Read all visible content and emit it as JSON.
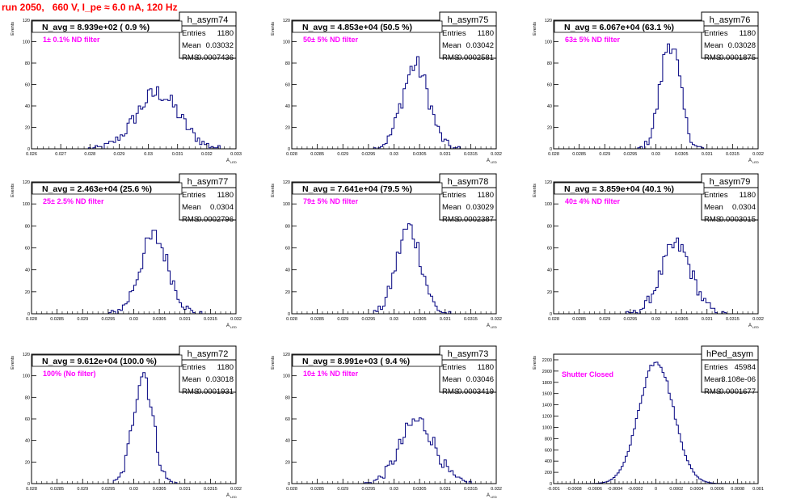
{
  "title": "run 2050,   660 V, I_pe ≈ 6.0 nA, 120 Hz",
  "colors": {
    "title": "#ff0000",
    "note": "#ff00ff",
    "hist": "#00007f",
    "frame": "#000000",
    "ticklabel": "#000000"
  },
  "chart_data": [
    {
      "type": "histogram",
      "name": "h_asym74",
      "avg_label": "N_avg = 8.939e+02 ( 0.9 %)",
      "note": "1± 0.1% ND filter",
      "entries": "1180",
      "mean": "0.03032",
      "rms": "0.0007436",
      "xlabel": "A",
      "xlabel_sub": "LED",
      "ylabel": "Events",
      "xlim": [
        0.026,
        0.033
      ],
      "ylim": [
        0,
        120
      ],
      "xticks": [
        "0.026",
        "0.027",
        "0.028",
        "0.029",
        "0.03",
        "0.031",
        "0.032",
        "0.033"
      ],
      "yticks": [
        "0",
        "20",
        "40",
        "60",
        "80",
        "100",
        "120"
      ],
      "mu": 0.03032,
      "sigma": 0.00074,
      "peak": 52
    },
    {
      "type": "histogram",
      "name": "h_asym75",
      "avg_label": "N_avg = 4.853e+04 (50.5 %)",
      "note": "50± 5% ND filter",
      "entries": "1180",
      "mean": "0.03042",
      "rms": "0.0002581",
      "xlabel": "A",
      "xlabel_sub": "LED",
      "ylabel": "Events",
      "xlim": [
        0.028,
        0.032
      ],
      "ylim": [
        0,
        120
      ],
      "xticks": [
        "0.028",
        "0.0285",
        "0.029",
        "0.0295",
        "0.03",
        "0.0305",
        "0.031",
        "0.0315",
        "0.032"
      ],
      "yticks": [
        "0",
        "20",
        "40",
        "60",
        "80",
        "100",
        "120"
      ],
      "mu": 0.03042,
      "sigma": 0.00026,
      "peak": 78
    },
    {
      "type": "histogram",
      "name": "h_asym76",
      "avg_label": "N_avg = 6.067e+04 (63.1 %)",
      "note": "63± 5% ND filter",
      "entries": "1180",
      "mean": "0.03028",
      "rms": "0.0001875",
      "xlabel": "A",
      "xlabel_sub": "LED",
      "ylabel": "Events",
      "xlim": [
        0.028,
        0.032
      ],
      "ylim": [
        0,
        120
      ],
      "xticks": [
        "0.028",
        "0.0285",
        "0.029",
        "0.0295",
        "0.03",
        "0.0305",
        "0.031",
        "0.0315",
        "0.032"
      ],
      "yticks": [
        "0",
        "20",
        "40",
        "60",
        "80",
        "100",
        "120"
      ],
      "mu": 0.03028,
      "sigma": 0.00019,
      "peak": 101
    },
    {
      "type": "histogram",
      "name": "h_asym77",
      "avg_label": "N_avg = 2.463e+04 (25.6 %)",
      "note": "25± 2.5% ND filter",
      "entries": "1180",
      "mean": "0.0304",
      "rms": "0.0002796",
      "xlabel": "A",
      "xlabel_sub": "LED",
      "ylabel": "Events",
      "xlim": [
        0.028,
        0.032
      ],
      "ylim": [
        0,
        120
      ],
      "xticks": [
        "0.028",
        "0.0285",
        "0.029",
        "0.0295",
        "0.03",
        "0.0305",
        "0.031",
        "0.0315",
        "0.032"
      ],
      "yticks": [
        "0",
        "20",
        "40",
        "60",
        "80",
        "100",
        "120"
      ],
      "mu": 0.0304,
      "sigma": 0.00028,
      "peak": 70
    },
    {
      "type": "histogram",
      "name": "h_asym78",
      "avg_label": "N_avg = 7.641e+04 (79.5 %)",
      "note": "79± 5% ND filter",
      "entries": "1180",
      "mean": "0.03029",
      "rms": "0.0002387",
      "xlabel": "A",
      "xlabel_sub": "LED",
      "ylabel": "Events",
      "xlim": [
        0.028,
        0.032
      ],
      "ylim": [
        0,
        120
      ],
      "xticks": [
        "0.028",
        "0.0285",
        "0.029",
        "0.0295",
        "0.03",
        "0.0305",
        "0.031",
        "0.0315",
        "0.032"
      ],
      "yticks": [
        "0",
        "20",
        "40",
        "60",
        "80",
        "100",
        "120"
      ],
      "mu": 0.03029,
      "sigma": 0.00024,
      "peak": 78
    },
    {
      "type": "histogram",
      "name": "h_asym79",
      "avg_label": "N_avg = 3.859e+04 (40.1 %)",
      "note": "40± 4% ND filter",
      "entries": "1180",
      "mean": "0.0304",
      "rms": "0.0003015",
      "xlabel": "A",
      "xlabel_sub": "LED",
      "ylabel": "Events",
      "xlim": [
        0.028,
        0.032
      ],
      "ylim": [
        0,
        120
      ],
      "xticks": [
        "0.028",
        "0.0285",
        "0.029",
        "0.0295",
        "0.03",
        "0.0305",
        "0.031",
        "0.0315",
        "0.032"
      ],
      "yticks": [
        "0",
        "20",
        "40",
        "60",
        "80",
        "100",
        "120"
      ],
      "mu": 0.0304,
      "sigma": 0.0003,
      "peak": 62
    },
    {
      "type": "histogram",
      "name": "h_asym72",
      "avg_label": "N_avg = 9.612e+04 (100.0 %)",
      "note": "100% (No filter)",
      "entries": "1180",
      "mean": "0.03018",
      "rms": "0.0001931",
      "xlabel": "A",
      "xlabel_sub": "LED",
      "ylabel": "Events",
      "xlim": [
        0.028,
        0.032
      ],
      "ylim": [
        0,
        120
      ],
      "xticks": [
        "0.028",
        "0.0285",
        "0.029",
        "0.0295",
        "0.03",
        "0.0305",
        "0.031",
        "0.0315",
        "0.032"
      ],
      "yticks": [
        "0",
        "20",
        "40",
        "60",
        "80",
        "100",
        "120"
      ],
      "mu": 0.03018,
      "sigma": 0.00019,
      "peak": 104
    },
    {
      "type": "histogram",
      "name": "h_asym73",
      "avg_label": "N_avg = 8.991e+03 ( 9.4 %)",
      "note": "10± 1% ND filter",
      "entries": "1180",
      "mean": "0.03046",
      "rms": "0.0003419",
      "xlabel": "A",
      "xlabel_sub": "LED",
      "ylabel": "Events",
      "xlim": [
        0.028,
        0.032
      ],
      "ylim": [
        0,
        120
      ],
      "xticks": [
        "0.028",
        "0.0285",
        "0.029",
        "0.0295",
        "0.03",
        "0.0305",
        "0.031",
        "0.0315",
        "0.032"
      ],
      "yticks": [
        "0",
        "20",
        "40",
        "60",
        "80",
        "100",
        "120"
      ],
      "mu": 0.03046,
      "sigma": 0.00034,
      "peak": 58
    },
    {
      "type": "histogram",
      "name": "hPed_asym",
      "avg_label": "",
      "note": "Shutter Closed",
      "entries": "45984",
      "mean": "3.108e-06",
      "rms": "0.0001677",
      "xlabel": "",
      "xlabel_sub": "",
      "ylabel": "Events",
      "xlim": [
        -0.001,
        0.001
      ],
      "ylim": [
        0,
        2300
      ],
      "xticks": [
        "-0.001",
        "-0.0008",
        "-0.0006",
        "-0.0004",
        "-0.0002",
        "0",
        "0.0002",
        "0.0004",
        "0.0006",
        "0.0008",
        "0.001"
      ],
      "yticks": [
        "0",
        "200",
        "400",
        "600",
        "800",
        "1000",
        "1200",
        "1400",
        "1600",
        "1800",
        "2000",
        "2200"
      ],
      "mu": 3e-06,
      "sigma": 0.000168,
      "peak": 2190
    }
  ]
}
